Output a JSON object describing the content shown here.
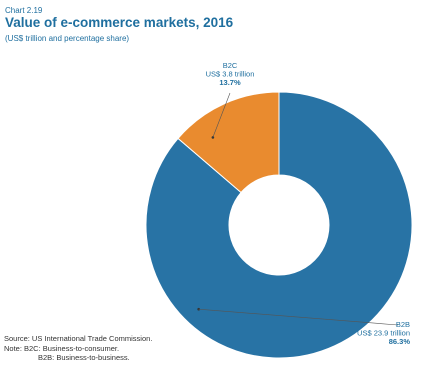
{
  "header": {
    "chart_number": "Chart 2.19",
    "title": "Value of e-commerce markets, 2016",
    "subtitle": "(US$ trillion and percentage share)"
  },
  "chart_data": {
    "type": "pie",
    "donut": true,
    "title": "Value of e-commerce markets, 2016",
    "subtitle": "(US$ trillion and percentage share)",
    "unit": "US$ trillion",
    "slices": [
      {
        "name": "B2B",
        "value": 23.9,
        "value_label": "US$ 23.9 trillion",
        "share": 86.3,
        "share_label": "86.3%",
        "color": "#2873a5"
      },
      {
        "name": "B2C",
        "value": 3.8,
        "value_label": "US$ 3.8 trillion",
        "share": 13.7,
        "share_label": "13.7%",
        "color": "#e98b2f"
      }
    ],
    "legend": "none"
  },
  "notes": {
    "source": "Source: US International Trade Commission.",
    "note_b2c": "Note: B2C: Business-to-consumer.",
    "note_b2b": "B2B: Business-to-business."
  },
  "colors": {
    "title": "#1f6f9f",
    "label": "#1f6f9f",
    "leader": "#555555"
  }
}
